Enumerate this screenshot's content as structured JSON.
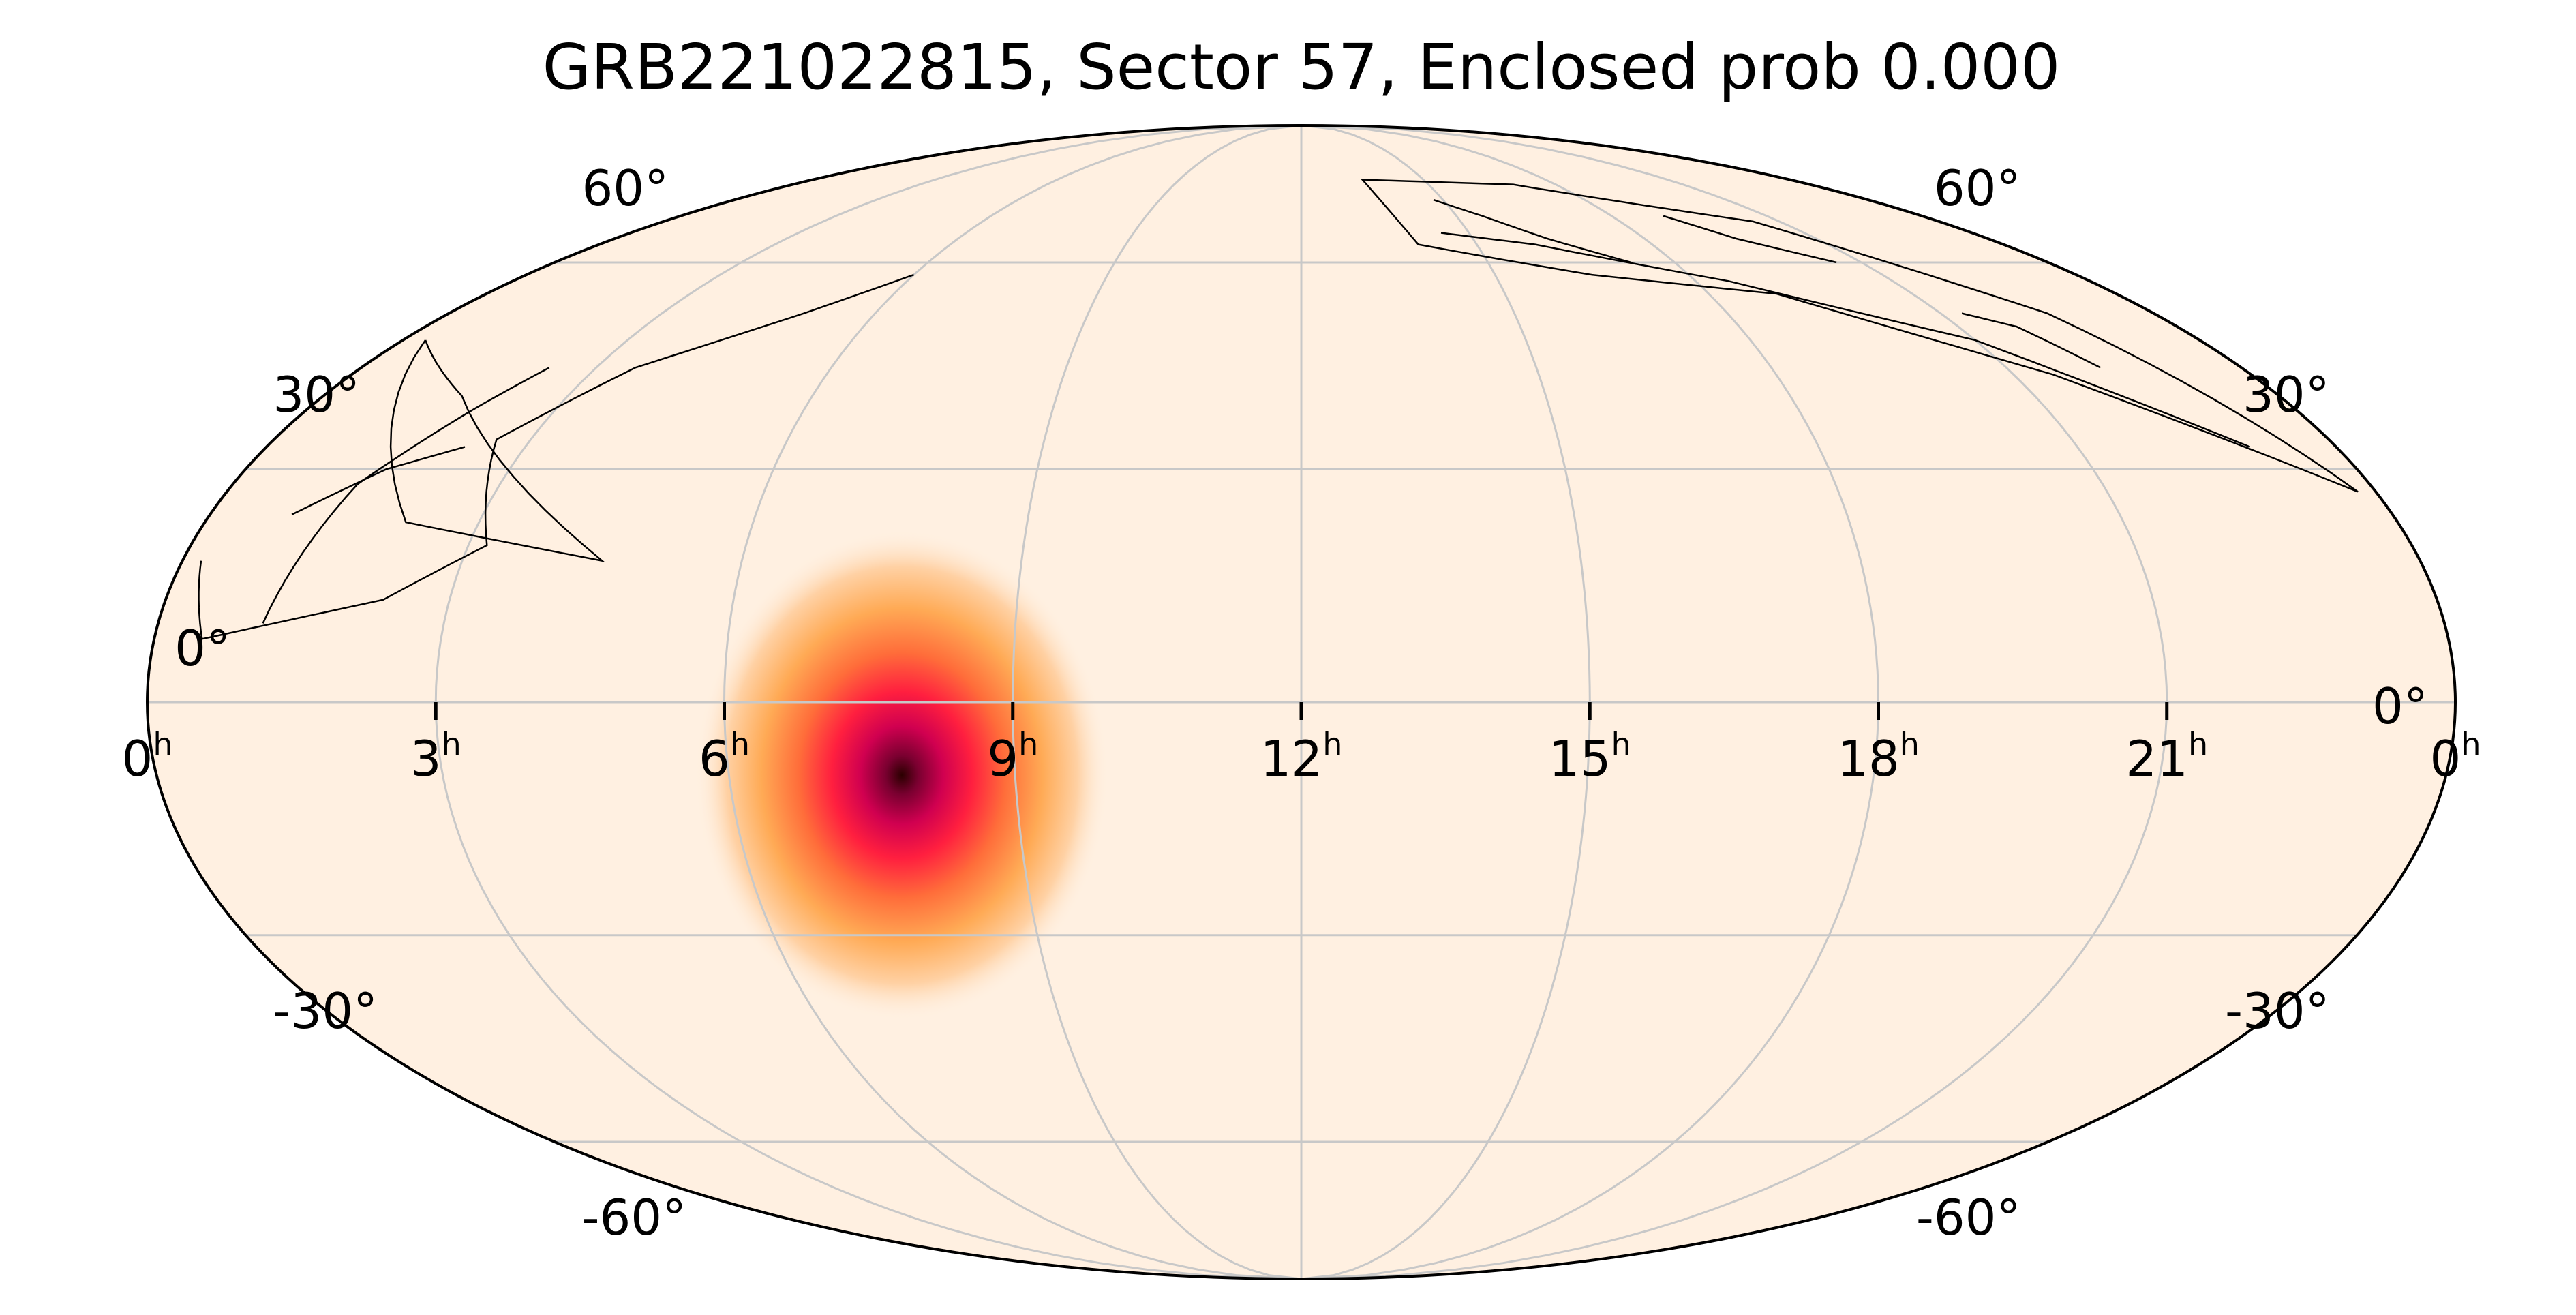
{
  "title": "GRB221022815, Sector 57, Enclosed prob 0.000",
  "projection": "mollweide",
  "colors": {
    "background_fill": "#fff0e1",
    "grid": "#c8c8c8",
    "outline": "#000000",
    "colormap": [
      "#fff0e1",
      "#ffd1a4",
      "#ffaa55",
      "#ff6d3a",
      "#ff1f3f",
      "#d00050",
      "#7a0030",
      "#2b0000"
    ]
  },
  "grid": {
    "ra_hours": [
      0,
      3,
      6,
      9,
      12,
      15,
      18,
      21,
      24
    ],
    "dec_degrees": [
      -60,
      -30,
      0,
      30,
      60
    ]
  },
  "ra_labels": [
    {
      "text": "0",
      "sup": "h",
      "ra_h": 24
    },
    {
      "text": "21",
      "sup": "h",
      "ra_h": 21
    },
    {
      "text": "18",
      "sup": "h",
      "ra_h": 18
    },
    {
      "text": "15",
      "sup": "h",
      "ra_h": 15
    },
    {
      "text": "12",
      "sup": "h",
      "ra_h": 12
    },
    {
      "text": "9",
      "sup": "h",
      "ra_h": 9
    },
    {
      "text": "6",
      "sup": "h",
      "ra_h": 6
    },
    {
      "text": "3",
      "sup": "h",
      "ra_h": 3
    },
    {
      "text": "0",
      "sup": "h",
      "ra_h": 0
    }
  ],
  "dec_labels": {
    "left": [
      "60°",
      "30°",
      "0°",
      "-30°",
      "-60°"
    ],
    "right": [
      "60°",
      "30°",
      "0°",
      "-30°",
      "-60°"
    ]
  },
  "localization": {
    "peak_ra_h": 8.3,
    "peak_dec_deg": -13,
    "sigma_deg": 12,
    "max_prob_shown": 1.0
  },
  "sector": {
    "name": "Sector 57",
    "enclosed_prob": 0.0,
    "camera_footprints": [
      [
        [
          0.3,
          48
        ],
        [
          1.7,
          40
        ],
        [
          4.5,
          18
        ],
        [
          2.2,
          23
        ],
        [
          0.3,
          48
        ]
      ],
      [
        [
          23.8,
          27
        ],
        [
          21.5,
          43
        ],
        [
          19.0,
          55
        ],
        [
          16.5,
          58
        ],
        [
          14.0,
          63
        ],
        [
          13.5,
          75
        ],
        [
          17.0,
          74
        ],
        [
          20.5,
          67
        ],
        [
          22.5,
          52
        ],
        [
          23.8,
          27
        ]
      ],
      [
        [
          23.0,
          33
        ],
        [
          21.0,
          48
        ],
        [
          18.5,
          57
        ],
        [
          16.0,
          63
        ],
        [
          14.5,
          65
        ]
      ],
      [
        [
          22.2,
          44
        ],
        [
          21.8,
          50
        ],
        [
          21.3,
          52
        ]
      ],
      [
        [
          20.6,
          60
        ],
        [
          19.6,
          64
        ],
        [
          19.0,
          68
        ]
      ],
      [
        [
          17.3,
          60
        ],
        [
          16.3,
          64
        ],
        [
          15.5,
          68
        ],
        [
          14.8,
          71
        ]
      ],
      [
        [
          0.2,
          18
        ],
        [
          0.5,
          8
        ],
        [
          2.3,
          13
        ],
        [
          3.2,
          20
        ],
        [
          2.6,
          34
        ],
        [
          3.5,
          44
        ],
        [
          5.0,
          52
        ],
        [
          6.0,
          58
        ]
      ],
      [
        [
          1.1,
          10
        ],
        [
          1.4,
          28
        ],
        [
          2.0,
          38
        ],
        [
          2.4,
          44
        ]
      ],
      [
        [
          0.9,
          24
        ],
        [
          1.6,
          30
        ],
        [
          2.3,
          33
        ]
      ]
    ]
  }
}
